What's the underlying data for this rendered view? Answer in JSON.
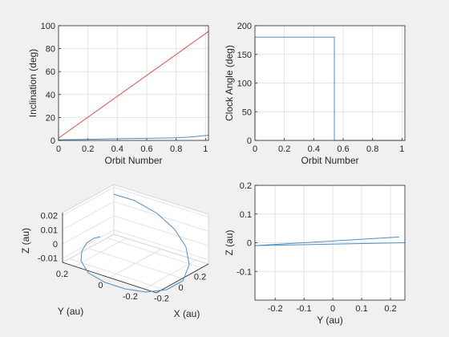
{
  "chart_data": [
    {
      "type": "line",
      "xlabel": "Orbit Number",
      "ylabel": "Inclination (deg)",
      "xlim": [
        0,
        1.02
      ],
      "ylim": [
        0,
        100
      ],
      "xticks": [
        0,
        0.2,
        0.4,
        0.6,
        0.8,
        1
      ],
      "yticks": [
        0,
        20,
        40,
        60,
        80,
        100
      ],
      "grid": true,
      "series": [
        {
          "color": "#d9534f",
          "x": [
            0,
            1.02
          ],
          "y": [
            2,
            95
          ]
        },
        {
          "color": "#4a90c8",
          "x": [
            0,
            0.2,
            0.4,
            0.6,
            0.8,
            0.9,
            1.0,
            1.02
          ],
          "y": [
            0.5,
            1.0,
            1.5,
            1.8,
            2.3,
            3.0,
            4.3,
            4.5
          ]
        }
      ]
    },
    {
      "type": "line",
      "xlabel": "Orbit Number",
      "ylabel": "Clock Angle (deg)",
      "xlim": [
        0,
        1.02
      ],
      "ylim": [
        0,
        200
      ],
      "xticks": [
        0,
        0.2,
        0.4,
        0.6,
        0.8,
        1
      ],
      "yticks": [
        0,
        50,
        100,
        150,
        200
      ],
      "grid": true,
      "series": [
        {
          "color": "#4a90c8",
          "x": [
            0,
            0,
            0.54,
            0.54,
            1.02
          ],
          "y": [
            0,
            180,
            180,
            0,
            0
          ]
        }
      ]
    },
    {
      "type": "line",
      "xlabel": "X (au)",
      "ylabel": "Y (au)",
      "zlabel": "Z (au)",
      "xticks": [
        -0.2,
        0,
        0.2
      ],
      "yticks": [
        -0.2,
        0,
        0.2
      ],
      "zticks": [
        -0.01,
        0,
        0.01,
        0.02
      ],
      "grid": true,
      "series": [
        {
          "color": "#4a90c8",
          "projected_path": [
            [
              142,
              242
            ],
            [
              168,
              250
            ],
            [
              196,
              266
            ],
            [
              218,
              286
            ],
            [
              232,
              308
            ],
            [
              236,
              330
            ],
            [
              228,
              350
            ],
            [
              208,
              361
            ],
            [
              182,
              364
            ],
            [
              156,
              360
            ],
            [
              131,
              352
            ],
            [
              110,
              340
            ],
            [
              101,
              325
            ],
            [
              102,
              313
            ],
            [
              108,
              303
            ],
            [
              117,
              297
            ],
            [
              125,
              295
            ]
          ]
        }
      ]
    },
    {
      "type": "line",
      "xlabel": "Y (au)",
      "ylabel": "Z (au)",
      "xlim": [
        -0.27,
        0.25
      ],
      "ylim": [
        -0.2,
        0.2
      ],
      "xticks": [
        -0.2,
        -0.1,
        0,
        0.1,
        0.2
      ],
      "yticks": [
        -0.1,
        0,
        0.1,
        0.2
      ],
      "grid": true,
      "series": [
        {
          "color": "#4a90c8",
          "x": [
            -0.27,
            0.23
          ],
          "y": [
            -0.01,
            0.02
          ]
        },
        {
          "color": "#4a90c8",
          "x": [
            -0.27,
            0.25
          ],
          "y": [
            -0.01,
            0.0
          ]
        }
      ]
    }
  ]
}
